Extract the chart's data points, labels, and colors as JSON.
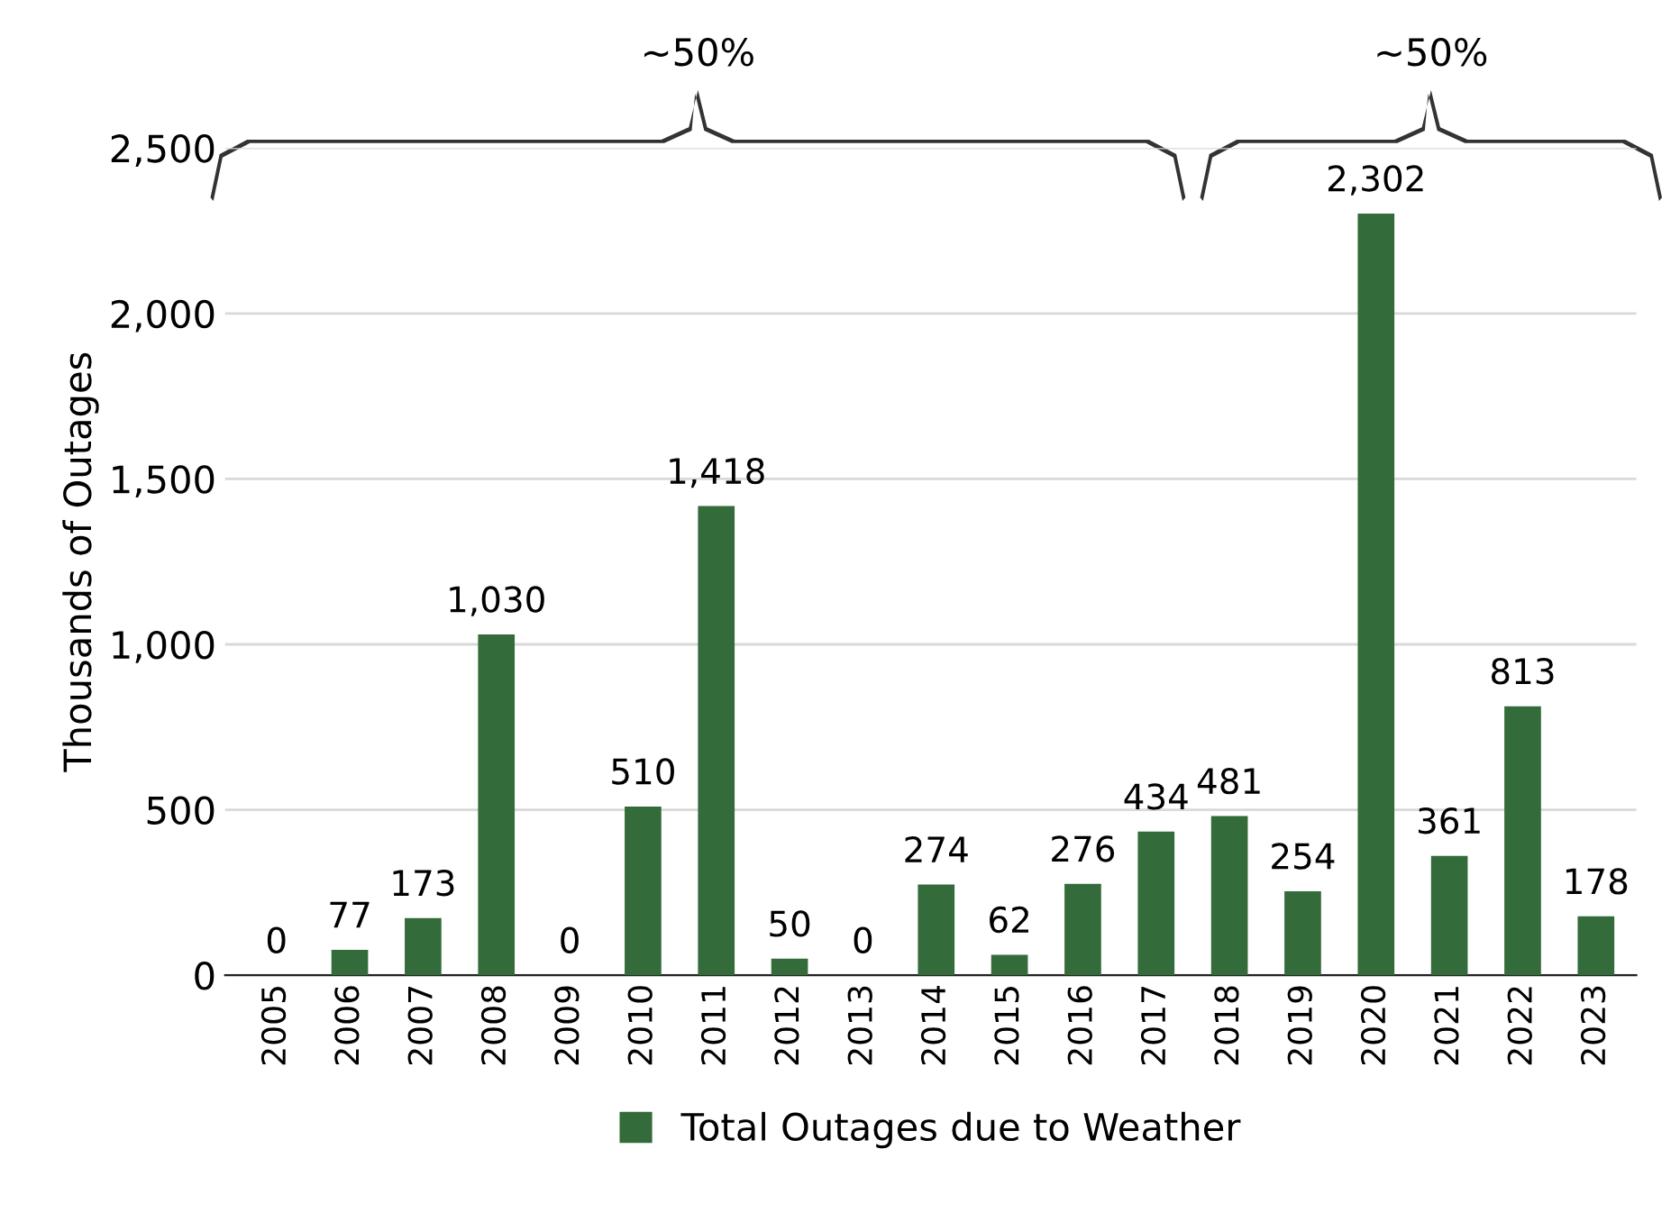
{
  "chart_data": {
    "type": "bar",
    "ylabel": "Thousands of Outages",
    "categories": [
      "2005",
      "2006",
      "2007",
      "2008",
      "2009",
      "2010",
      "2011",
      "2012",
      "2013",
      "2014",
      "2015",
      "2016",
      "2017",
      "2018",
      "2019",
      "2020",
      "2021",
      "2022",
      "2023"
    ],
    "series": [
      {
        "name": "Total Outages due to Weather",
        "color": "#346b3a",
        "values": [
          0,
          77,
          173,
          1030,
          0,
          510,
          1418,
          50,
          0,
          274,
          62,
          276,
          434,
          481,
          254,
          2302,
          361,
          813,
          178
        ],
        "value_labels": [
          "0",
          "77",
          "173",
          "1,030",
          "0",
          "510",
          "1,418",
          "50",
          "0",
          "274",
          "62",
          "276",
          "434",
          "481",
          "254",
          "2,302",
          "361",
          "813",
          "178"
        ]
      }
    ],
    "ylim": [
      0,
      2500
    ],
    "yticks": [
      {
        "value": 0,
        "label": "0"
      },
      {
        "value": 500,
        "label": "500"
      },
      {
        "value": 1000,
        "label": "1,000"
      },
      {
        "value": 1500,
        "label": "1,500"
      },
      {
        "value": 2000,
        "label": "2,000"
      },
      {
        "value": 2500,
        "label": "2,500"
      }
    ],
    "grid": "y",
    "legend": "bottom",
    "annotations": [
      "~50%",
      "~50%"
    ]
  }
}
